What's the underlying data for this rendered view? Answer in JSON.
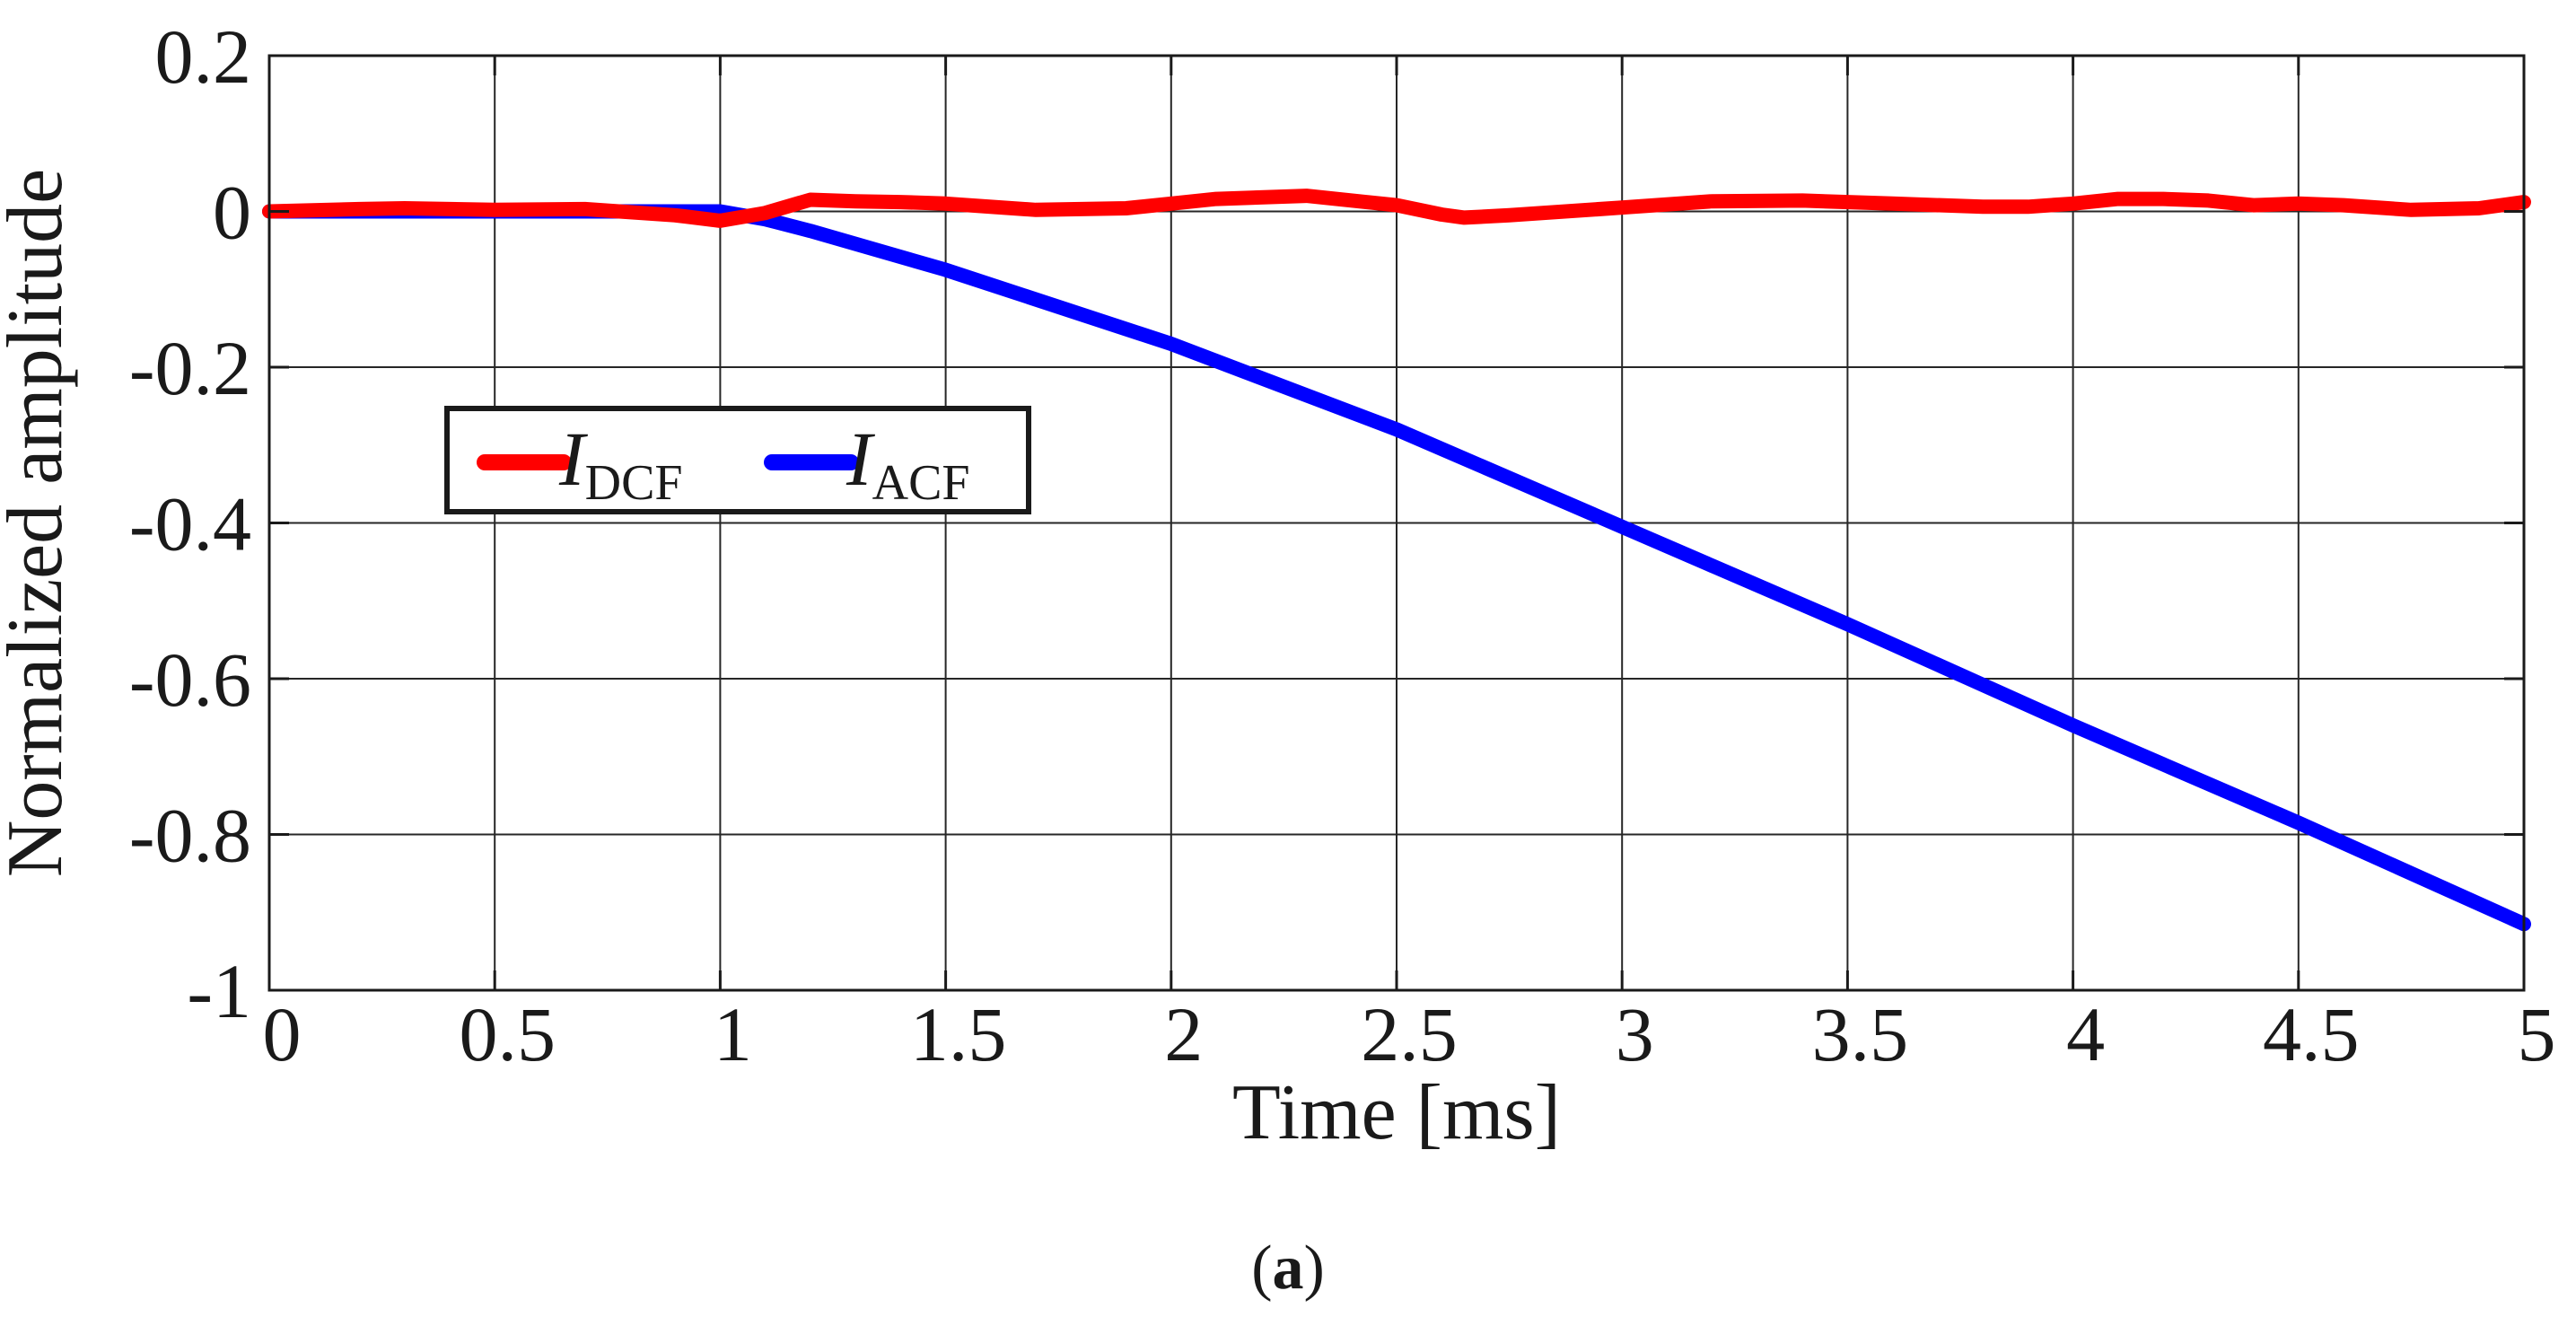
{
  "chart_data": {
    "type": "line",
    "title": "",
    "xlabel": "Time [ms]",
    "ylabel": "Normalized amplitude",
    "xlim": [
      0,
      5
    ],
    "ylim": [
      -1,
      0.2
    ],
    "xticks": [
      0,
      0.5,
      1,
      1.5,
      2,
      2.5,
      3,
      3.5,
      4,
      4.5,
      5
    ],
    "xtick_labels": [
      "0",
      "0.5",
      "1",
      "1.5",
      "2",
      "2.5",
      "3",
      "3.5",
      "4",
      "4.5",
      "5"
    ],
    "yticks": [
      0.2,
      0,
      -0.2,
      -0.4,
      -0.6,
      -0.8,
      -1
    ],
    "ytick_labels": [
      "0.2",
      "0",
      "-0.2",
      "-0.4",
      "-0.6",
      "-0.8",
      "-1"
    ],
    "grid": true,
    "legend_position": "upper-left",
    "series": [
      {
        "name": "I_DCF",
        "label_main": "I",
        "label_sub": "DCF",
        "color": "#ff0000",
        "x": [
          0,
          0.2,
          0.3,
          0.5,
          0.7,
          0.9,
          1.0,
          1.1,
          1.2,
          1.3,
          1.4,
          1.5,
          1.7,
          1.9,
          2.0,
          2.1,
          2.3,
          2.5,
          2.6,
          2.65,
          2.75,
          3.0,
          3.2,
          3.4,
          3.6,
          3.8,
          3.9,
          4.0,
          4.1,
          4.2,
          4.3,
          4.4,
          4.5,
          4.6,
          4.75,
          4.9,
          5.0
        ],
        "y": [
          0,
          0.003,
          0.004,
          0.002,
          0.003,
          -0.005,
          -0.012,
          -0.002,
          0.015,
          0.013,
          0.012,
          0.01,
          0.002,
          0.004,
          0.01,
          0.016,
          0.02,
          0.008,
          -0.004,
          -0.008,
          -0.005,
          0.005,
          0.013,
          0.014,
          0.01,
          0.006,
          0.006,
          0.01,
          0.016,
          0.016,
          0.014,
          0.008,
          0.01,
          0.008,
          0.002,
          0.004,
          0.012
        ]
      },
      {
        "name": "I_ACF",
        "label_main": "I",
        "label_sub": "ACF",
        "color": "#0000ff",
        "x": [
          0,
          0.5,
          1.0,
          1.1,
          1.2,
          1.5,
          2.0,
          2.5,
          3.0,
          3.5,
          4.0,
          4.5,
          5.0
        ],
        "y": [
          0,
          0,
          0,
          -0.01,
          -0.025,
          -0.075,
          -0.17,
          -0.28,
          -0.405,
          -0.53,
          -0.66,
          -0.785,
          -0.915
        ]
      }
    ]
  },
  "caption": {
    "open": "(",
    "letter": "a",
    "close": ")"
  }
}
